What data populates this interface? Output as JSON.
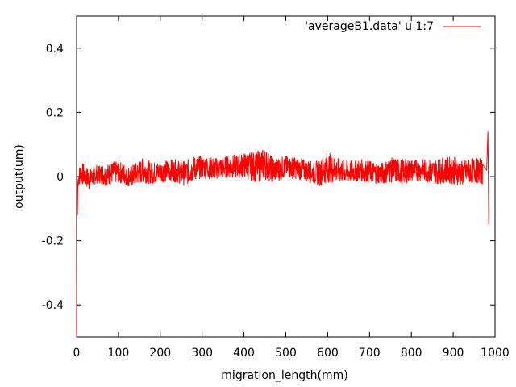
{
  "chart_data": {
    "type": "line",
    "title": "",
    "xlabel": "migration_length(mm)",
    "ylabel": "output(um)",
    "xlim": [
      0,
      1000
    ],
    "ylim": [
      -0.5,
      0.5
    ],
    "x_ticks": [
      0,
      100,
      200,
      300,
      400,
      500,
      600,
      700,
      800,
      900,
      1000
    ],
    "x_tick_labels": [
      "0",
      "100",
      "200",
      "300",
      "400",
      "500",
      "600",
      "700",
      "800",
      "900",
      "1000"
    ],
    "y_ticks": [
      -0.4,
      -0.2,
      0,
      0.2,
      0.4
    ],
    "y_tick_labels": [
      "-0.4",
      "-0.2",
      "0",
      "0.2",
      "0.4"
    ],
    "grid": false,
    "legend_position": "top-right",
    "series": [
      {
        "name": "'averageB1.data' u 1:7",
        "color": "#ff0000",
        "x": [
          0,
          1,
          2,
          3,
          5,
          10,
          20,
          30,
          40,
          50,
          70,
          100,
          130,
          160,
          180,
          200,
          230,
          260,
          280,
          300,
          330,
          360,
          400,
          430,
          450,
          470,
          500,
          530,
          560,
          580,
          600,
          620,
          650,
          680,
          700,
          730,
          750,
          780,
          800,
          830,
          850,
          880,
          900,
          920,
          950,
          970,
          980,
          983,
          985
        ],
        "y": [
          -0.5,
          -0.07,
          -0.12,
          -0.02,
          0.0,
          0.01,
          0.005,
          -0.01,
          0.0,
          0.01,
          0.005,
          0.015,
          0.0,
          0.02,
          0.01,
          0.015,
          0.02,
          0.01,
          0.025,
          0.03,
          0.025,
          0.03,
          0.035,
          0.03,
          0.04,
          0.02,
          0.03,
          0.025,
          0.015,
          0.01,
          0.03,
          0.02,
          0.015,
          0.02,
          0.015,
          0.01,
          0.02,
          0.015,
          0.02,
          0.02,
          0.015,
          0.02,
          0.02,
          0.01,
          0.02,
          0.015,
          0.02,
          0.14,
          -0.15
        ],
        "spread": [
          0.0,
          0.0,
          0.0,
          0.03,
          0.03,
          0.035,
          0.035,
          0.035,
          0.03,
          0.03,
          0.035,
          0.035,
          0.035,
          0.04,
          0.035,
          0.035,
          0.035,
          0.04,
          0.04,
          0.035,
          0.035,
          0.035,
          0.04,
          0.05,
          0.05,
          0.04,
          0.035,
          0.035,
          0.035,
          0.04,
          0.05,
          0.04,
          0.035,
          0.035,
          0.035,
          0.035,
          0.04,
          0.04,
          0.035,
          0.035,
          0.04,
          0.04,
          0.045,
          0.04,
          0.04,
          0.04,
          0.0,
          0.0,
          0.0
        ]
      }
    ]
  }
}
